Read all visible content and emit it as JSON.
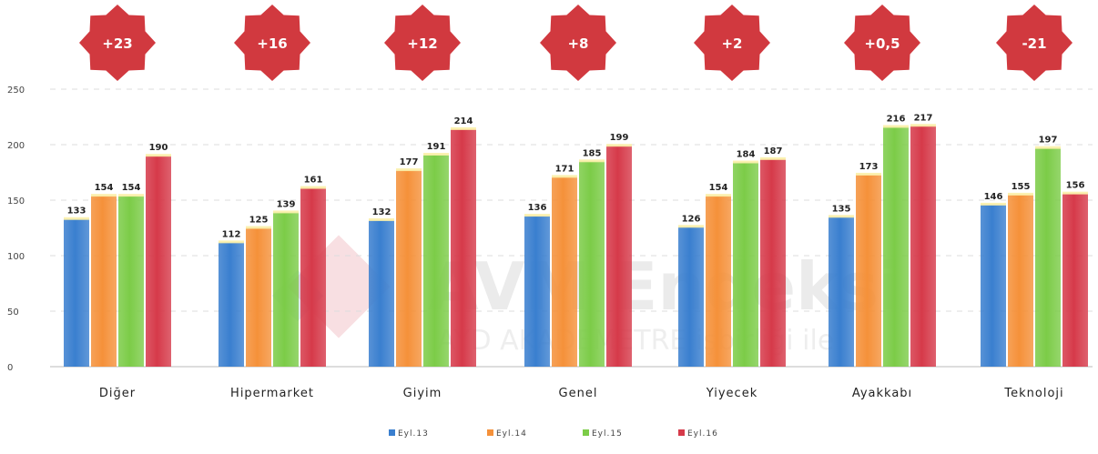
{
  "watermark": {
    "brand": "AVM Endeksi",
    "sub": "AYD AKADEMETRE işbirliği ile",
    "logo_icon": "diamond-logo-icon"
  },
  "chart_data": {
    "type": "bar",
    "title": "",
    "xlabel": "",
    "ylabel": "",
    "ylim": [
      0,
      250
    ],
    "yticks": [
      "0",
      "50",
      "100",
      "150",
      "200",
      "250"
    ],
    "grid": true,
    "legend_position": "bottom",
    "categories": [
      "Diğer",
      "Hipermarket",
      "Giyim",
      "Genel",
      "Yiyecek",
      "Ayakkabı",
      "Teknoloji"
    ],
    "series": [
      {
        "name": "Eyl.13",
        "color": "#3a7fcf",
        "values": [
          133,
          112,
          132,
          136,
          126,
          135,
          146
        ]
      },
      {
        "name": "Eyl.14",
        "color": "#f5913a",
        "values": [
          154,
          125,
          177,
          171,
          154,
          173,
          155
        ]
      },
      {
        "name": "Eyl.15",
        "color": "#7ccc48",
        "values": [
          154,
          139,
          191,
          185,
          184,
          216,
          197
        ]
      },
      {
        "name": "Eyl.16",
        "color": "#d63a4a",
        "values": [
          190,
          161,
          214,
          199,
          187,
          217,
          156
        ]
      }
    ],
    "badges": [
      "+23",
      "+16",
      "+12",
      "+8",
      "+2",
      "+0,5",
      "-21"
    ],
    "badge_color": "#d1393f"
  }
}
